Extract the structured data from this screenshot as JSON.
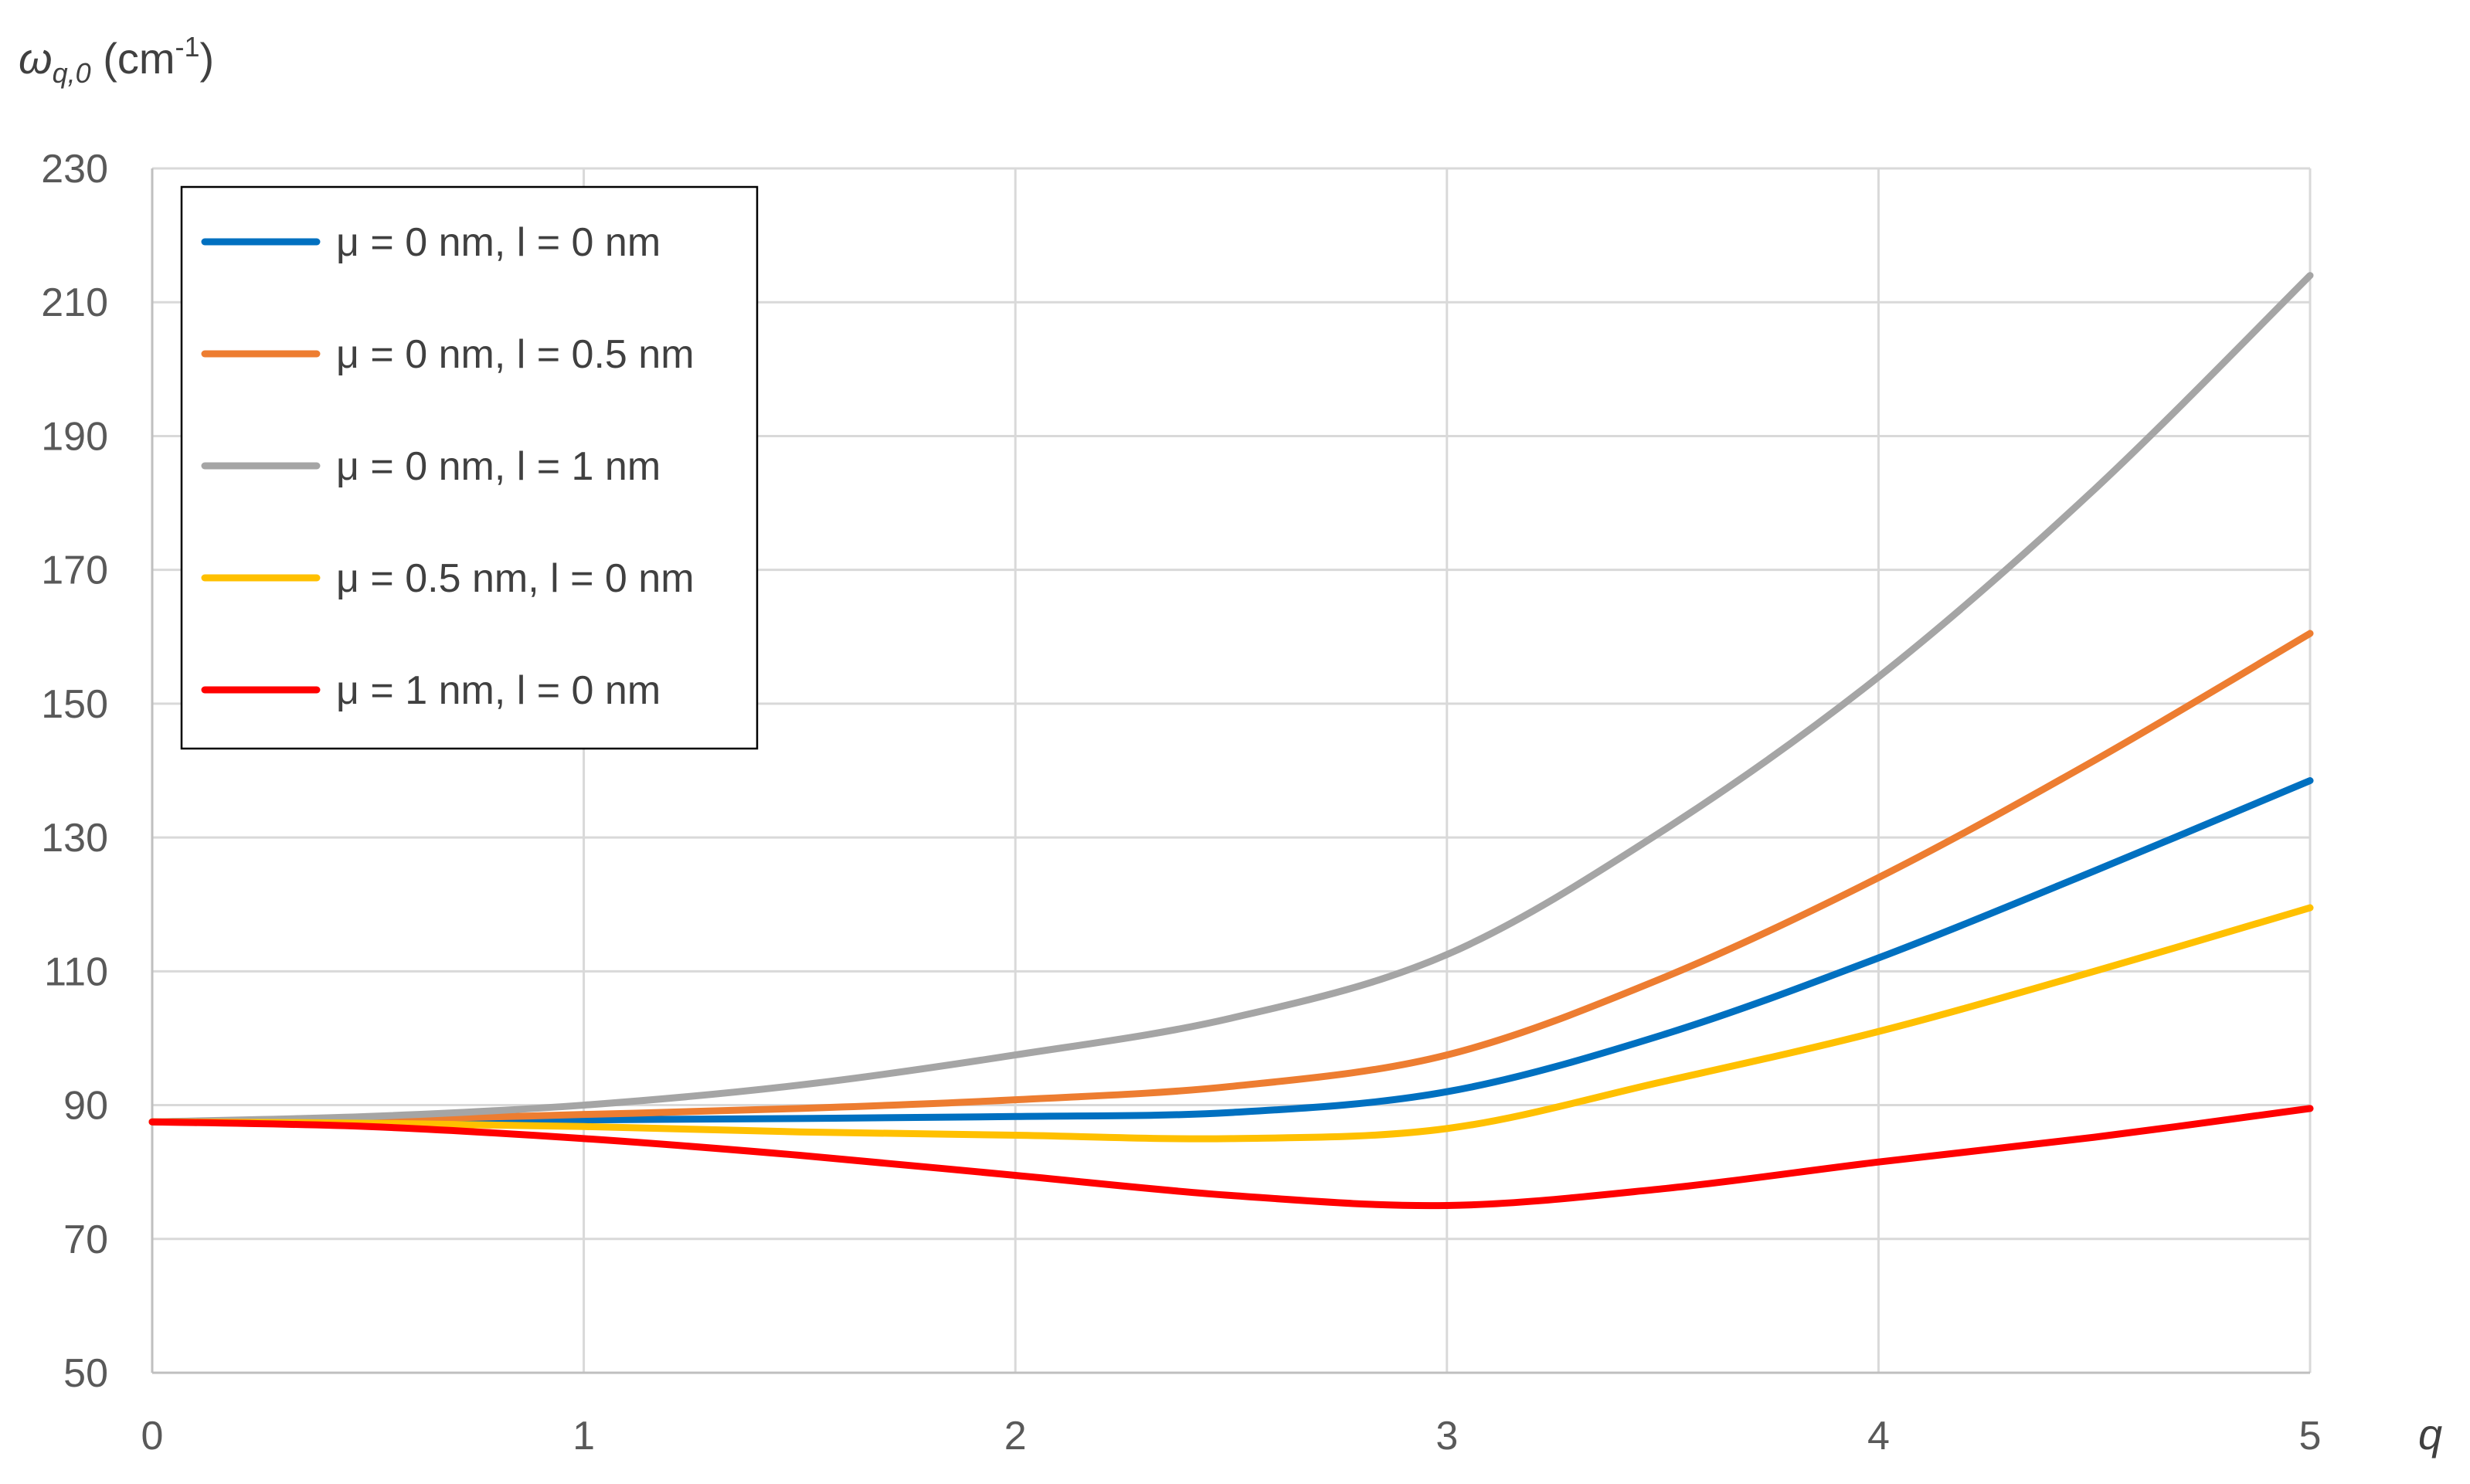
{
  "chart_data": {
    "type": "line",
    "title": "",
    "ylabel": {
      "symbol": "ω",
      "subscript": "q,0",
      "unit_open": " (cm",
      "unit_sup": "-1",
      "unit_close": ")"
    },
    "xlabel": "q",
    "xlim": [
      0,
      5
    ],
    "ylim": [
      50,
      230
    ],
    "xticks": [
      0,
      1,
      2,
      3,
      4,
      5
    ],
    "yticks": [
      50,
      70,
      90,
      110,
      130,
      150,
      170,
      190,
      210,
      230
    ],
    "grid": true,
    "legend_position": "top-left",
    "x": [
      0,
      0.5,
      1,
      1.5,
      2,
      2.5,
      3,
      3.5,
      4,
      4.5,
      5
    ],
    "series": [
      {
        "name": "μ = 0 nm, l = 0 nm",
        "color": "#0070C0",
        "values": [
          87.5,
          87.6,
          87.8,
          88.0,
          88.3,
          88.9,
          92.0,
          100.5,
          112.0,
          125.0,
          138.5
        ]
      },
      {
        "name": "μ = 0 nm, l = 0.5 nm",
        "color": "#ED7D31",
        "values": [
          87.5,
          87.8,
          88.6,
          89.5,
          90.8,
          92.8,
          97.5,
          109.0,
          124.0,
          141.5,
          160.5
        ]
      },
      {
        "name": "μ = 0 nm, l = 1 nm",
        "color": "#A5A5A5",
        "values": [
          87.5,
          88.3,
          90.0,
          93.0,
          97.5,
          103.0,
          112.5,
          131.0,
          154.0,
          182.0,
          214.0
        ]
      },
      {
        "name": "μ = 0.5 nm, l = 0 nm",
        "color": "#FFC000",
        "values": [
          87.5,
          87.3,
          86.8,
          86.0,
          85.5,
          85.0,
          86.5,
          93.5,
          101.0,
          110.0,
          119.5
        ]
      },
      {
        "name": "μ = 1 nm, l = 0 nm",
        "color": "#FF0000",
        "values": [
          87.5,
          86.8,
          85.0,
          82.5,
          79.5,
          76.5,
          75.0,
          77.5,
          81.5,
          85.2,
          89.5
        ]
      }
    ]
  }
}
